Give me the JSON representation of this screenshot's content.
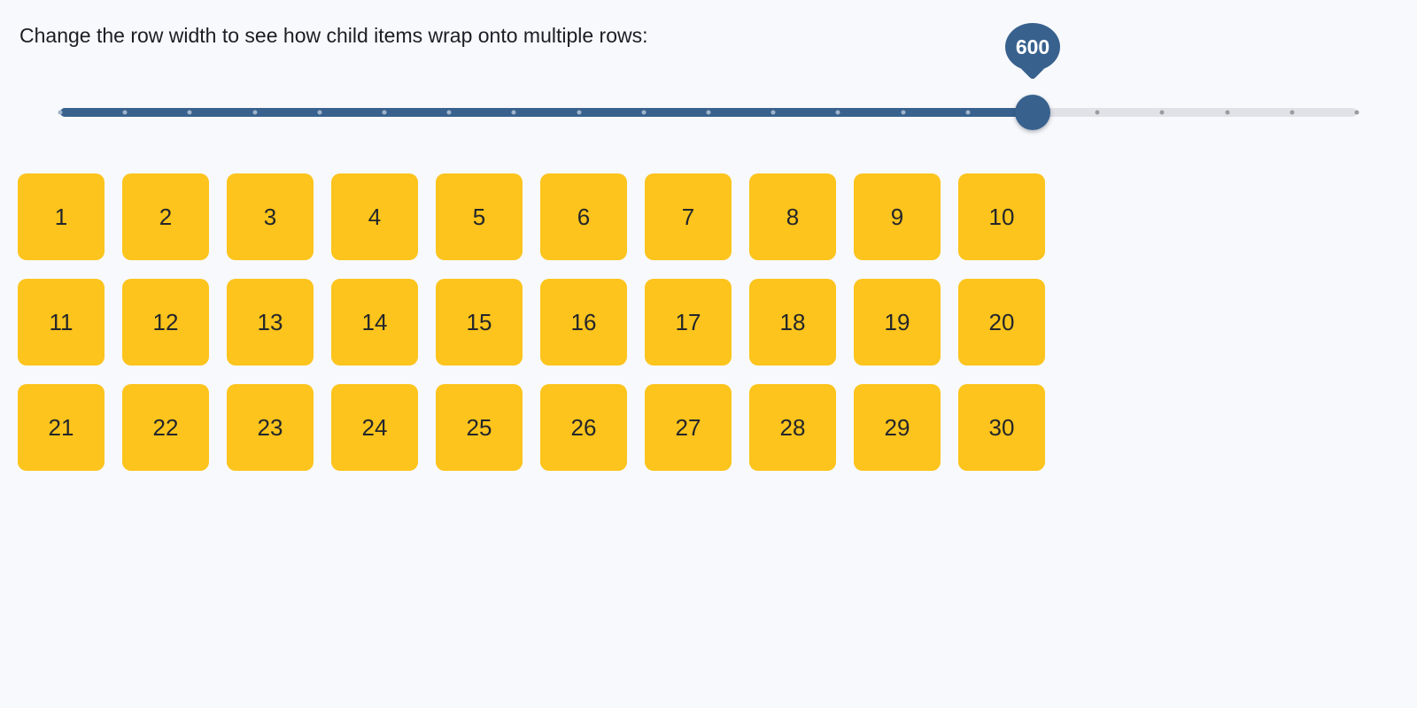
{
  "page": {
    "background": "#f8f9fc"
  },
  "header": {
    "text": "Change the row width to see how child items wrap onto multiple rows:"
  },
  "slider": {
    "value": 600,
    "display_value": "600",
    "min": 0,
    "max": 800,
    "step": 40,
    "tick_count": 21,
    "colors": {
      "fill": "#38618e",
      "track": "#e1e2e7",
      "tick_on_fill": "#9fb4ca",
      "tick_on_track": "#9b9ba2",
      "tooltip_text": "#ffffff"
    }
  },
  "grid": {
    "item_color": "#fcc41c",
    "item_text_color": "#24262b",
    "items": [
      "1",
      "2",
      "3",
      "4",
      "5",
      "6",
      "7",
      "8",
      "9",
      "10",
      "11",
      "12",
      "13",
      "14",
      "15",
      "16",
      "17",
      "18",
      "19",
      "20",
      "21",
      "22",
      "23",
      "24",
      "25",
      "26",
      "27",
      "28",
      "29",
      "30"
    ]
  }
}
